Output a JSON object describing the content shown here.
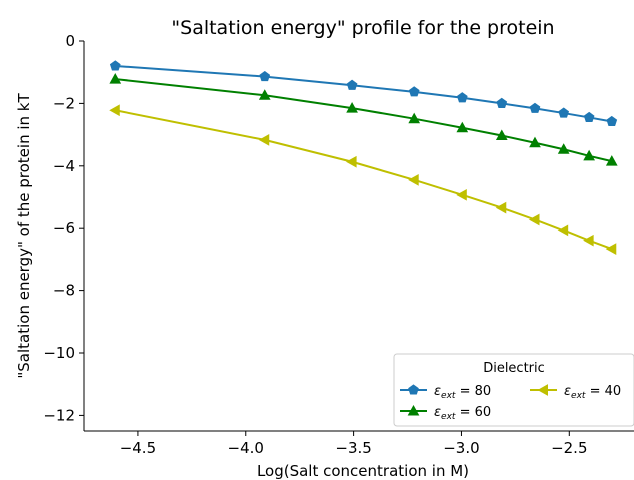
{
  "chart_data": {
    "type": "line",
    "title": "\"Saltation energy\" profile for the protein",
    "xlabel": "Log(Salt concentration in M)",
    "ylabel": "\"Saltation energy\" of the protein in kT",
    "xlim": [
      -4.75,
      -2.2
    ],
    "ylim": [
      -12.5,
      0
    ],
    "xticks": [
      -4.5,
      -4.0,
      -3.5,
      -3.0,
      -2.5
    ],
    "xtick_labels": [
      "−4.5",
      "−4.0",
      "−3.5",
      "−3.0",
      "−2.5"
    ],
    "yticks": [
      0,
      -2,
      -4,
      -6,
      -8,
      -10,
      -12
    ],
    "ytick_labels": [
      "0",
      "−2",
      "−4",
      "−6",
      "−8",
      "−10",
      "−12"
    ],
    "x": [
      -4.605,
      -3.912,
      -3.507,
      -3.219,
      -2.996,
      -2.813,
      -2.659,
      -2.526,
      -2.408,
      -2.303
    ],
    "series": [
      {
        "name_main": "ε",
        "name_sub": "ext",
        "name_rest": " = 80",
        "color": "#1f77b4",
        "marker": "pentagon",
        "values": [
          -0.8,
          -1.14,
          -1.42,
          -1.63,
          -1.82,
          -2.0,
          -2.16,
          -2.31,
          -2.45,
          -2.58
        ]
      },
      {
        "name_main": "ε",
        "name_sub": "ext",
        "name_rest": " = 60",
        "color": "#008000",
        "marker": "triangle-up",
        "values": [
          -1.22,
          -1.74,
          -2.15,
          -2.49,
          -2.78,
          -3.03,
          -3.26,
          -3.47,
          -3.68,
          -3.85
        ]
      },
      {
        "name_main": "ε",
        "name_sub": "ext",
        "name_rest": " = 40",
        "color": "#bfbf00",
        "marker": "triangle-left",
        "values": [
          -2.22,
          -3.17,
          -3.87,
          -4.45,
          -4.93,
          -5.34,
          -5.72,
          -6.07,
          -6.4,
          -6.67
        ]
      }
    ],
    "legend": {
      "title": "Dielectric",
      "placement": "lower-right",
      "columns": 2
    },
    "grid": false
  }
}
